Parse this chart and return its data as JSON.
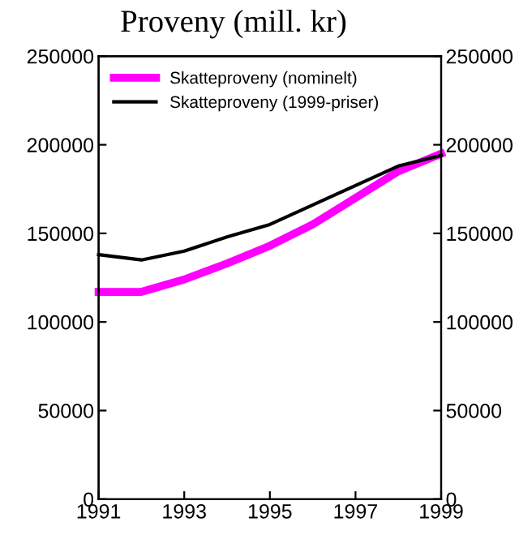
{
  "chart_data": {
    "type": "line",
    "title": "Proveny (mill. kr)",
    "x": [
      1991,
      1992,
      1993,
      1994,
      1995,
      1996,
      1997,
      1998,
      1999
    ],
    "series": [
      {
        "name": "Skatteproveny (nominelt)",
        "color": "#ff00ff",
        "values": [
          117000,
          117000,
          124000,
          133000,
          143000,
          155000,
          170000,
          185000,
          195000
        ]
      },
      {
        "name": "Skatteproveny (1999-priser)",
        "color": "#000000",
        "values": [
          138000,
          135000,
          140000,
          148000,
          155000,
          166000,
          177000,
          188000,
          194000
        ]
      }
    ],
    "xlim": [
      1991,
      1999
    ],
    "xticks": [
      1991,
      1993,
      1995,
      1997,
      1999
    ],
    "ylim": [
      0,
      250000
    ],
    "yticks": [
      0,
      50000,
      100000,
      150000,
      200000,
      250000
    ],
    "y2lim": [
      0,
      250000
    ],
    "y2ticks": [
      0,
      50000,
      100000,
      150000,
      200000,
      250000
    ],
    "grid": false,
    "legend": "top left",
    "marker": "none",
    "line_style": "solid"
  }
}
